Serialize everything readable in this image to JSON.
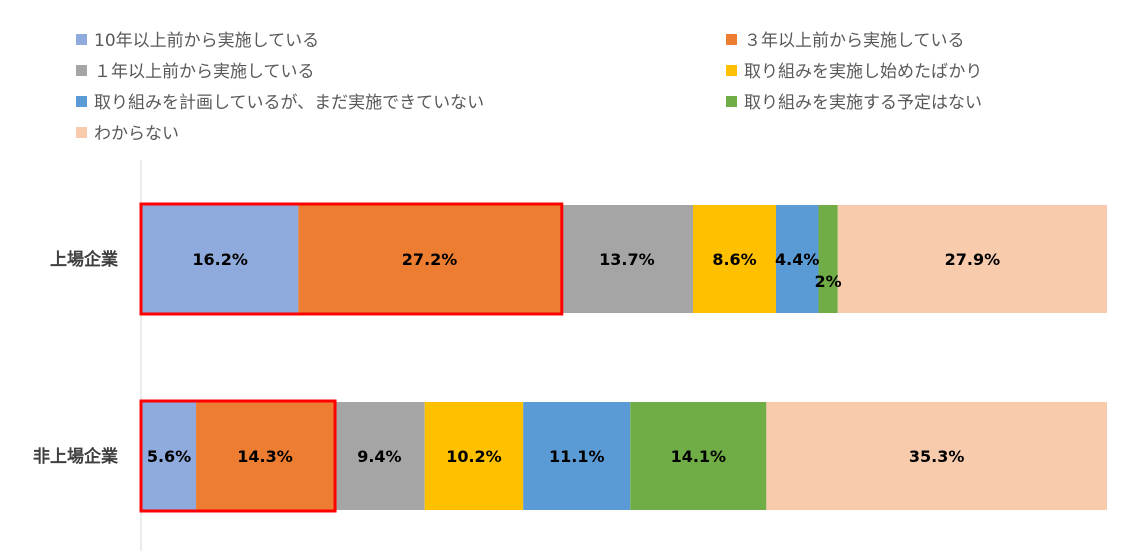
{
  "chart_data": {
    "type": "bar",
    "orientation": "horizontal",
    "stacked": true,
    "categories": [
      "上場企業",
      "非上場企業"
    ],
    "series": [
      {
        "name": "10年以上前から実施している",
        "color": "#8FAADC",
        "values": [
          16.2,
          5.6
        ],
        "labels": [
          "16.2%",
          "5.6%"
        ]
      },
      {
        "name": "３年以上前から実施している",
        "color": "#ED7D31",
        "values": [
          27.2,
          14.3
        ],
        "labels": [
          "27.2%",
          "14.3%"
        ]
      },
      {
        "name": "１年以上前から実施している",
        "color": "#A5A5A5",
        "values": [
          13.7,
          9.4
        ],
        "labels": [
          "13.7%",
          "9.4%"
        ]
      },
      {
        "name": "取り組みを実施し始めたばかり",
        "color": "#FFC000",
        "values": [
          8.6,
          10.2
        ],
        "labels": [
          "8.6%",
          "10.2%"
        ]
      },
      {
        "name": "取り組みを計画しているが、まだ実施できていない",
        "color": "#5B9BD5",
        "values": [
          4.4,
          11.1
        ],
        "labels": [
          "4.4%",
          "11.1%"
        ]
      },
      {
        "name": "取り組みを実施する予定はない",
        "color": "#70AD47",
        "values": [
          2,
          14.1
        ],
        "labels": [
          "2%",
          "14.1%"
        ]
      },
      {
        "name": "わからない",
        "color": "#F8CBAD",
        "values": [
          27.9,
          35.3
        ],
        "labels": [
          "27.9%",
          "35.3%"
        ]
      }
    ],
    "highlight": {
      "color": "#FF0000",
      "series_count": 2
    },
    "legend_position": "top",
    "grid": false
  }
}
